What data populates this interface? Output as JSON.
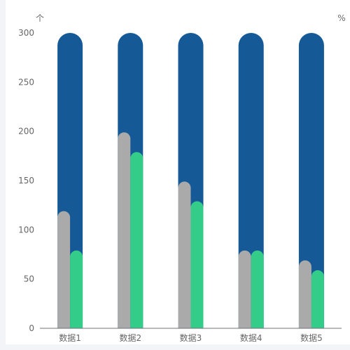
{
  "chart_data": {
    "type": "bar",
    "categories": [
      "数据1",
      "数据2",
      "数据3",
      "数据4",
      "数据5"
    ],
    "left_axis_unit": "个",
    "right_axis_unit": "%",
    "ylim": [
      0,
      300
    ],
    "yticks": [
      0,
      50,
      100,
      150,
      200,
      250,
      300
    ],
    "grid": false,
    "legend": "none",
    "series": [
      {
        "color": "#155a96",
        "values": [
          300,
          300,
          300,
          300,
          300
        ]
      },
      {
        "color": "#aaaaaa",
        "values": [
          119,
          199,
          149,
          79,
          69
        ]
      },
      {
        "color": "#33cc88",
        "values": [
          79,
          179,
          129,
          79,
          59
        ]
      }
    ]
  }
}
